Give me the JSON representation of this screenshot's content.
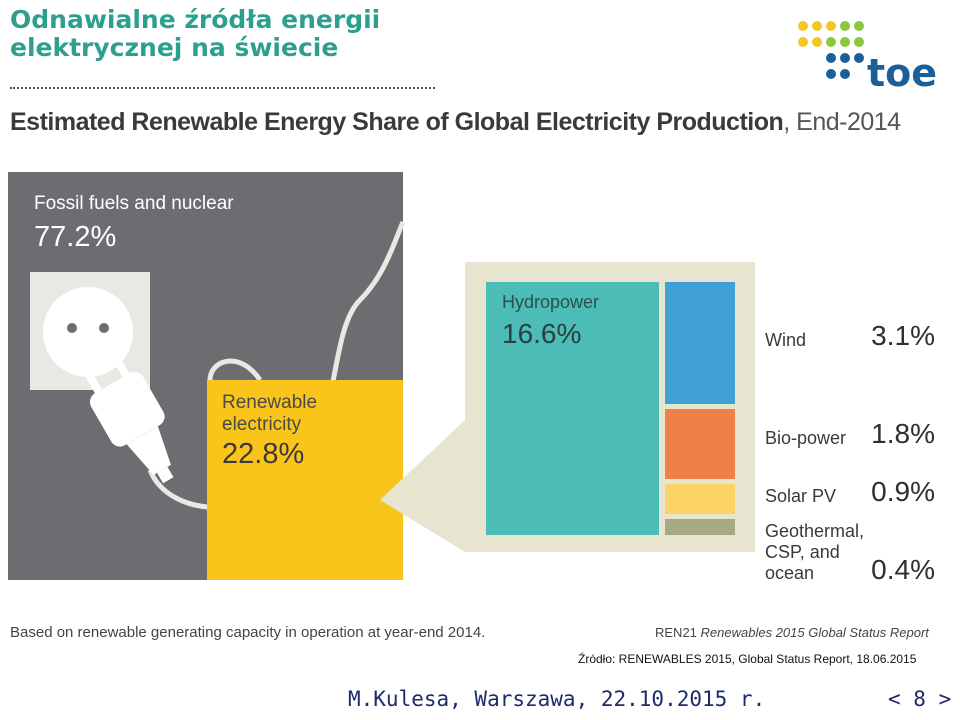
{
  "slide": {
    "title_line1": "Odnawialne źródła energii",
    "title_line2": "elektrycznej na świecie"
  },
  "logo": {
    "text": "toe"
  },
  "chart_title": {
    "bold": "Estimated Renewable Energy Share of Global Electricity Production",
    "suffix": ", End-2014"
  },
  "chart_data": {
    "type": "treemap",
    "title": "Estimated Renewable Energy Share of Global Electricity Production, End-2014",
    "unit": "%",
    "categories": [
      {
        "label": "Fossil fuels and nuclear",
        "value": 77.2,
        "display": "77.2%",
        "color": "#6d6d71"
      },
      {
        "label": "Renewable electricity",
        "value": 22.8,
        "display": "22.8%",
        "color": "#f9c51a"
      }
    ],
    "renewable_breakdown": [
      {
        "label": "Hydropower",
        "value": 16.6,
        "display": "16.6%",
        "color": "#4bbcb6"
      },
      {
        "label": "Wind",
        "value": 3.1,
        "display": "3.1%",
        "color": "#3fa0d6"
      },
      {
        "label": "Bio-power",
        "value": 1.8,
        "display": "1.8%",
        "color": "#ee8146"
      },
      {
        "label": "Solar PV",
        "value": 0.9,
        "display": "0.9%",
        "color": "#fed366"
      },
      {
        "label": "Geothermal, CSP, and ocean",
        "value": 0.4,
        "display": "0.4%",
        "color": "#a6aa82"
      }
    ]
  },
  "labels": {
    "fossil": "Fossil fuels and nuclear",
    "fossil_value": "77.2%",
    "renew_line1": "Renewable",
    "renew_line2": "electricity",
    "renew_value": "22.8%",
    "hydro": "Hydropower",
    "hydro_value": "16.6%",
    "wind": "Wind",
    "wind_value": "3.1%",
    "bio": "Bio-power",
    "bio_value": "1.8%",
    "solar": "Solar PV",
    "solar_value": "0.9%",
    "geo_line1": "Geothermal,",
    "geo_line2": "CSP, and",
    "geo_line3": "ocean",
    "geo_value": "0.4%"
  },
  "footnote": "Based on renewable generating capacity in operation at year-end 2014.",
  "report": {
    "org": "REN21",
    "title": "Renewables 2015 Global Status Report"
  },
  "source": "Źródło: RENEWABLES 2015, Global Status Report, 18.06.2015",
  "footer": {
    "author": "M.Kulesa, Warszawa, 22.10.2015 r.",
    "page": "< 8 >"
  }
}
